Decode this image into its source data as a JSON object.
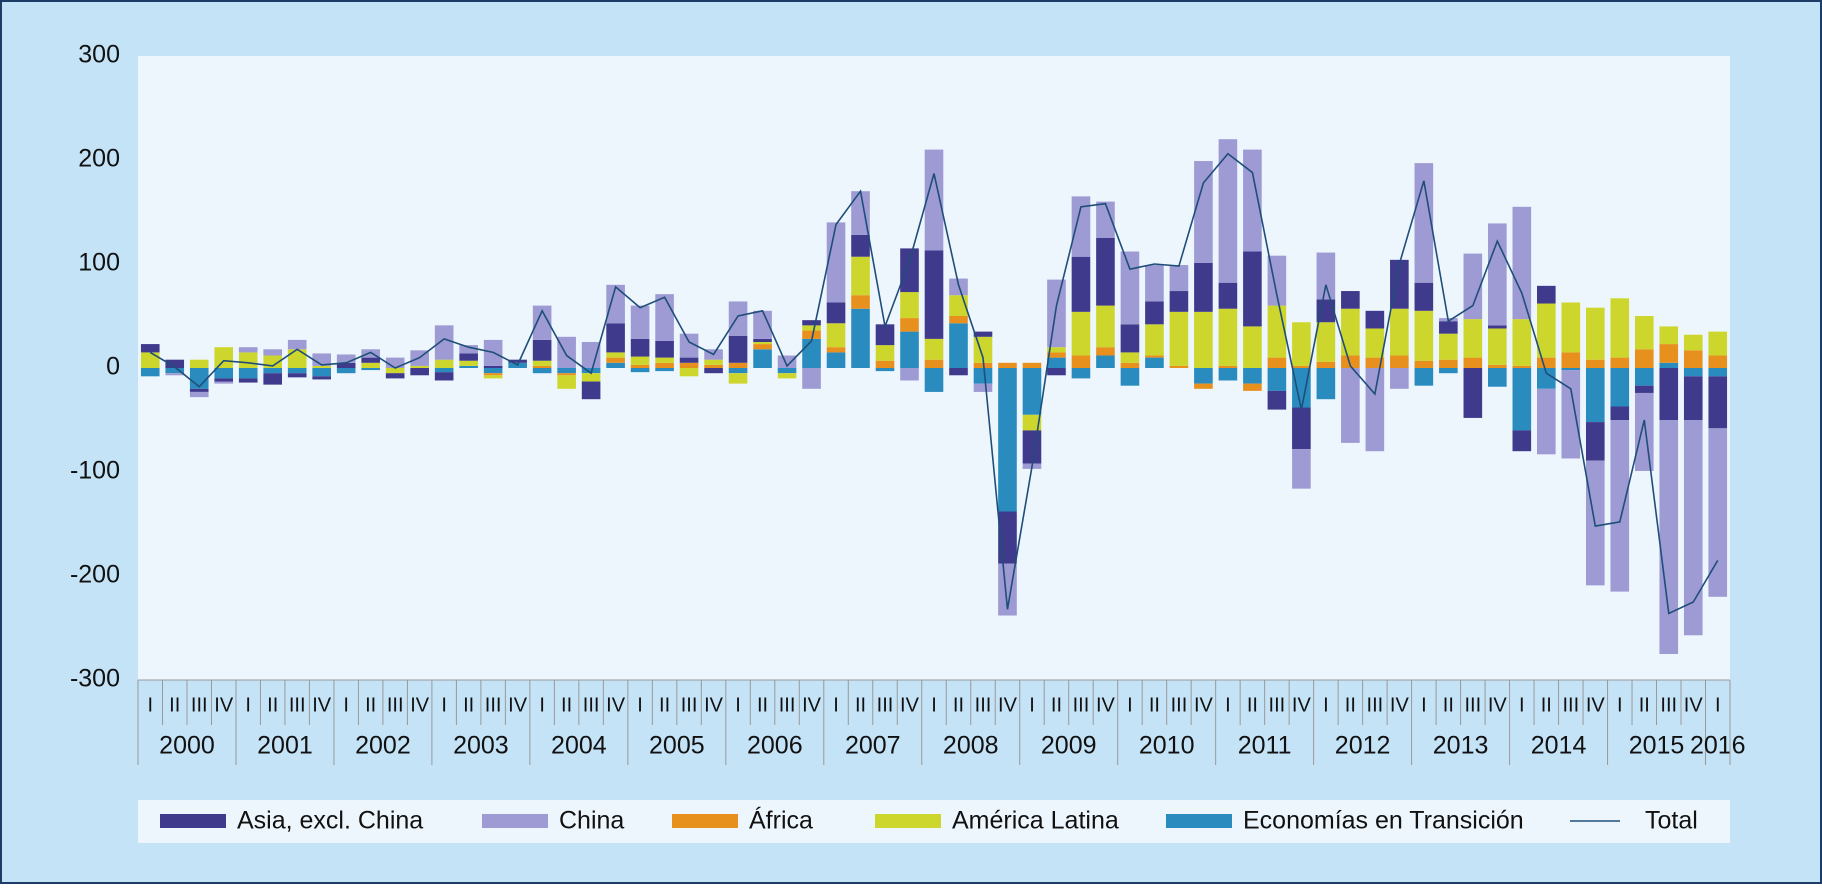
{
  "chart_data": {
    "type": "stacked-bar",
    "categories": [
      "I",
      "II",
      "III",
      "IV",
      "I",
      "II",
      "III",
      "IV",
      "I",
      "II",
      "III",
      "IV",
      "I",
      "II",
      "III",
      "IV",
      "I",
      "II",
      "III",
      "IV",
      "I",
      "II",
      "III",
      "IV",
      "I",
      "II",
      "III",
      "IV",
      "I",
      "II",
      "III",
      "IV",
      "I",
      "II",
      "III",
      "IV",
      "I",
      "II",
      "III",
      "IV",
      "I",
      "II",
      "III",
      "IV",
      "I",
      "II",
      "III",
      "IV",
      "I",
      "II",
      "III",
      "IV",
      "I",
      "II",
      "III",
      "IV",
      "I",
      "II",
      "III",
      "IV",
      "I",
      "II",
      "III",
      "IV",
      "I"
    ],
    "years": [
      "2000",
      "2001",
      "2002",
      "2003",
      "2004",
      "2005",
      "2006",
      "2007",
      "2008",
      "2009",
      "2010",
      "2011",
      "2012",
      "2013",
      "2014",
      "2015",
      "2016"
    ],
    "ylim": [
      -300,
      300
    ],
    "yticks": [
      -300,
      -200,
      -100,
      0,
      100,
      200,
      300
    ],
    "series": [
      {
        "name": "Asia, excl. China",
        "color": "#3f3a8c",
        "values": [
          8,
          8,
          -3,
          -3,
          -4,
          -11,
          -4,
          -3,
          5,
          5,
          -5,
          -7,
          -8,
          7,
          2,
          3,
          20,
          0,
          -17,
          28,
          17,
          16,
          5,
          -5,
          26,
          3,
          0,
          5,
          20,
          21,
          20,
          42,
          85,
          -7,
          5,
          -50,
          -32,
          -7,
          53,
          65,
          27,
          22,
          20,
          47,
          25,
          72,
          -18,
          -40,
          22,
          17,
          17,
          47,
          27,
          12,
          -48,
          3,
          -20,
          17,
          0,
          -37,
          -13,
          -7,
          -50,
          -42,
          -50
        ]
      },
      {
        "name": "China",
        "color": "#9d9ad4",
        "values": [
          0,
          -2,
          -5,
          -2,
          5,
          6,
          9,
          12,
          8,
          8,
          10,
          15,
          33,
          8,
          25,
          0,
          33,
          30,
          25,
          37,
          32,
          45,
          23,
          10,
          33,
          27,
          12,
          -20,
          77,
          42,
          0,
          -12,
          97,
          16,
          -8,
          -50,
          -5,
          65,
          58,
          35,
          70,
          35,
          25,
          98,
          138,
          98,
          48,
          -38,
          45,
          -72,
          -80,
          -20,
          115,
          3,
          63,
          98,
          108,
          -63,
          -85,
          -120,
          -165,
          -75,
          -225,
          -207,
          -162
        ]
      },
      {
        "name": "África",
        "color": "#e8901e",
        "values": [
          0,
          0,
          0,
          0,
          0,
          0,
          0,
          0,
          0,
          0,
          0,
          0,
          0,
          0,
          -2,
          0,
          2,
          -2,
          0,
          5,
          3,
          5,
          5,
          3,
          5,
          5,
          0,
          8,
          5,
          13,
          7,
          13,
          8,
          7,
          5,
          5,
          5,
          5,
          12,
          8,
          5,
          2,
          2,
          -5,
          2,
          -7,
          10,
          2,
          6,
          12,
          10,
          12,
          7,
          8,
          10,
          3,
          2,
          10,
          15,
          8,
          10,
          18,
          18,
          17,
          12
        ]
      },
      {
        "name": "América Latina",
        "color": "#cdd62c",
        "values": [
          15,
          0,
          8,
          20,
          15,
          12,
          18,
          2,
          0,
          5,
          -5,
          2,
          8,
          5,
          -3,
          0,
          5,
          -13,
          -8,
          5,
          8,
          5,
          -8,
          5,
          -10,
          2,
          -5,
          5,
          23,
          37,
          15,
          25,
          20,
          20,
          25,
          0,
          -15,
          5,
          42,
          40,
          10,
          30,
          52,
          54,
          55,
          40,
          50,
          42,
          38,
          45,
          28,
          45,
          48,
          25,
          37,
          35,
          45,
          52,
          48,
          50,
          57,
          32,
          17,
          15,
          23
        ]
      },
      {
        "name": "Economías en Transición",
        "color": "#2a8bbf",
        "values": [
          -8,
          -5,
          -20,
          -10,
          -10,
          -5,
          -5,
          -8,
          -5,
          -2,
          0,
          0,
          -4,
          2,
          -5,
          5,
          -5,
          -5,
          -5,
          5,
          -4,
          -3,
          0,
          0,
          -5,
          18,
          -5,
          28,
          15,
          57,
          -3,
          35,
          -23,
          43,
          -15,
          -138,
          -45,
          10,
          -10,
          12,
          -17,
          10,
          0,
          -15,
          -12,
          -15,
          -22,
          -38,
          -30,
          0,
          0,
          0,
          -17,
          -5,
          0,
          -18,
          -60,
          -20,
          -2,
          -52,
          -37,
          -17,
          5,
          -8,
          -8
        ]
      }
    ],
    "line_series": {
      "name": "Total",
      "color": "#1f4e79",
      "values": [
        15,
        1,
        -18,
        7,
        5,
        2,
        18,
        3,
        5,
        15,
        0,
        10,
        28,
        20,
        15,
        3,
        55,
        12,
        -5,
        78,
        58,
        68,
        25,
        13,
        50,
        55,
        2,
        26,
        138,
        170,
        40,
        103,
        187,
        80,
        10,
        -232,
        -95,
        60,
        155,
        158,
        95,
        100,
        98,
        178,
        206,
        188,
        70,
        -40,
        80,
        2,
        -25,
        100,
        180,
        45,
        60,
        122,
        72,
        -5,
        -20,
        -152,
        -148,
        -50,
        -236,
        -225,
        -185
      ]
    }
  }
}
